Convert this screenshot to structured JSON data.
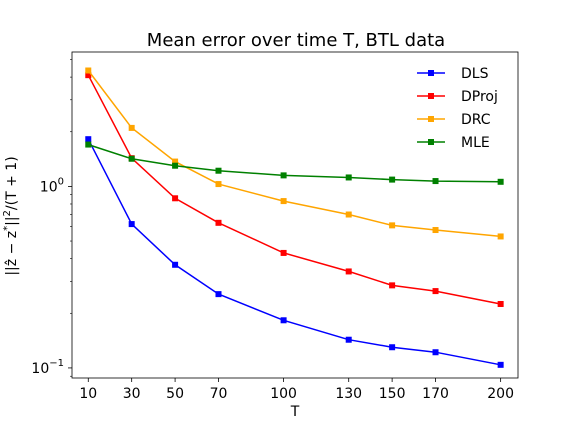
{
  "chart_data": {
    "type": "line",
    "title": "Mean error over time T, BTL data",
    "xlabel": "T",
    "ylabel": "||ẑ − z*||²/(T+1)",
    "yscale": "log",
    "x": [
      10,
      30,
      50,
      70,
      100,
      130,
      150,
      170,
      200
    ],
    "xticks": [
      "10",
      "30",
      "50",
      "70",
      "100",
      "130",
      "150",
      "170",
      "200"
    ],
    "yticks": [
      {
        "value": 0.1,
        "base": "10",
        "exp": "−1"
      },
      {
        "value": 1,
        "base": "10",
        "exp": "0"
      }
    ],
    "xlim": [
      2.5,
      208
    ],
    "ylim": [
      0.088,
      5.5
    ],
    "grid": false,
    "legend_position": "top-right",
    "series": [
      {
        "name": "DLS",
        "color": "#0000ff",
        "values": [
          1.82,
          0.62,
          0.37,
          0.255,
          0.183,
          0.143,
          0.13,
          0.122,
          0.104
        ]
      },
      {
        "name": "DProj",
        "color": "#ff0000",
        "values": [
          4.1,
          1.43,
          0.86,
          0.63,
          0.43,
          0.34,
          0.285,
          0.265,
          0.225
        ]
      },
      {
        "name": "DRC",
        "color": "#ffa500",
        "values": [
          4.35,
          2.1,
          1.37,
          1.03,
          0.83,
          0.7,
          0.61,
          0.575,
          0.53
        ]
      },
      {
        "name": "MLE",
        "color": "#008000",
        "values": [
          1.7,
          1.42,
          1.3,
          1.22,
          1.15,
          1.12,
          1.09,
          1.07,
          1.06
        ]
      }
    ]
  }
}
